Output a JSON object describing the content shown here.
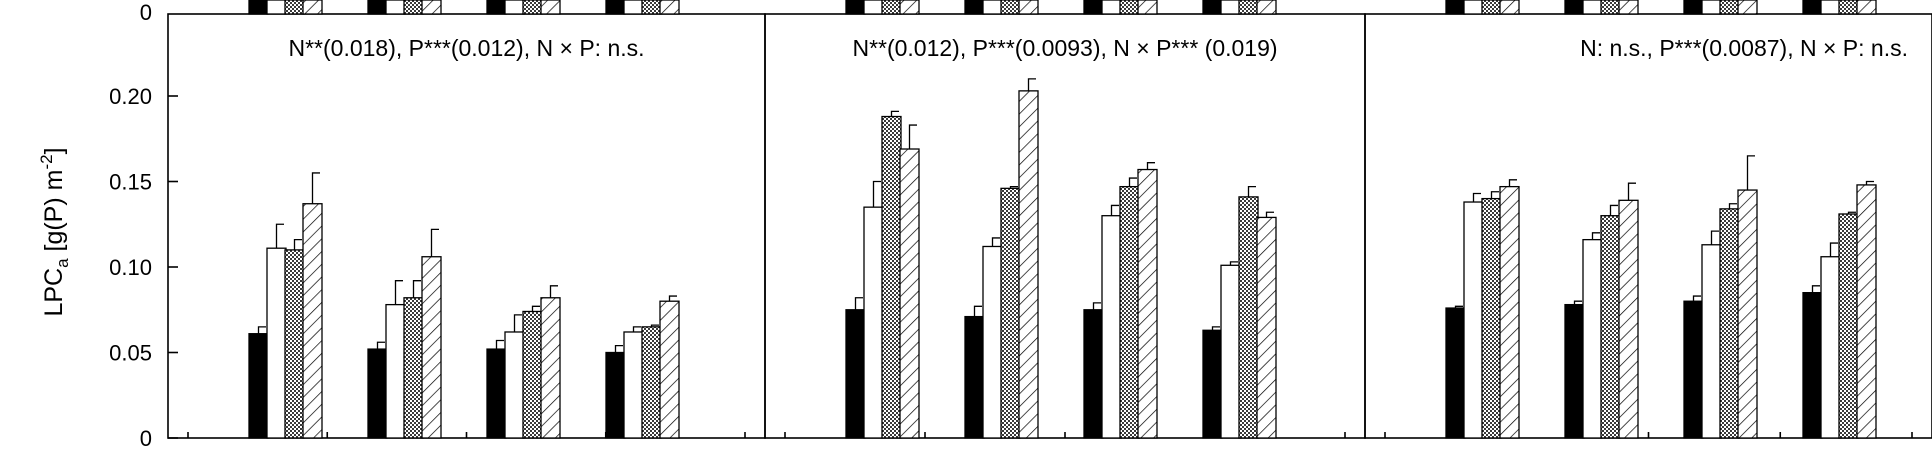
{
  "chart_data": {
    "type": "bar",
    "ylabel_main": "LPC",
    "ylabel_sub": "a",
    "ylabel_unit": " [g(P) m",
    "ylabel_sup": "-2",
    "ylabel_close": "]",
    "ylim": [
      0,
      0.25
    ],
    "yticks": [
      0,
      0.05,
      0.1,
      0.15,
      0.2
    ],
    "ytick_labels": [
      "0",
      "0.05",
      "0.10",
      "0.15",
      "0.20"
    ],
    "top_tick_label": "0",
    "series_patterns": [
      "black",
      "white",
      "crosshatch",
      "diagonal"
    ],
    "panels": [
      {
        "annotation": "N**(0.018), P***(0.012), N × P: n.s.",
        "groups": [
          {
            "values": [
              0.061,
              0.111,
              0.11,
              0.137
            ],
            "errors": [
              0.004,
              0.014,
              0.006,
              0.018
            ]
          },
          {
            "values": [
              0.052,
              0.078,
              0.082,
              0.106
            ],
            "errors": [
              0.004,
              0.014,
              0.01,
              0.016
            ]
          },
          {
            "values": [
              0.052,
              0.062,
              0.074,
              0.082
            ],
            "errors": [
              0.005,
              0.01,
              0.003,
              0.007
            ]
          },
          {
            "values": [
              0.05,
              0.062,
              0.065,
              0.08
            ],
            "errors": [
              0.004,
              0.003,
              0.001,
              0.003
            ]
          }
        ]
      },
      {
        "annotation": "N**(0.012), P***(0.0093), N × P*** (0.019)",
        "groups": [
          {
            "values": [
              0.075,
              0.135,
              0.188,
              0.169
            ],
            "errors": [
              0.007,
              0.015,
              0.003,
              0.014
            ]
          },
          {
            "values": [
              0.071,
              0.112,
              0.146,
              0.203
            ],
            "errors": [
              0.006,
              0.005,
              0.001,
              0.007
            ]
          },
          {
            "values": [
              0.075,
              0.13,
              0.147,
              0.157
            ],
            "errors": [
              0.004,
              0.006,
              0.005,
              0.004
            ]
          },
          {
            "values": [
              0.063,
              0.101,
              0.141,
              0.129
            ],
            "errors": [
              0.002,
              0.002,
              0.006,
              0.003
            ]
          }
        ]
      },
      {
        "annotation": "N: n.s., P***(0.0087), N × P: n.s.",
        "groups": [
          {
            "values": [
              0.076,
              0.138,
              0.14,
              0.147
            ],
            "errors": [
              0.001,
              0.005,
              0.004,
              0.004
            ]
          },
          {
            "values": [
              0.078,
              0.116,
              0.13,
              0.139
            ],
            "errors": [
              0.002,
              0.004,
              0.006,
              0.01
            ]
          },
          {
            "values": [
              0.08,
              0.113,
              0.134,
              0.145
            ],
            "errors": [
              0.003,
              0.008,
              0.003,
              0.02
            ]
          },
          {
            "values": [
              0.085,
              0.106,
              0.131,
              0.148
            ],
            "errors": [
              0.004,
              0.008,
              0.001,
              0.002
            ]
          }
        ]
      }
    ]
  }
}
